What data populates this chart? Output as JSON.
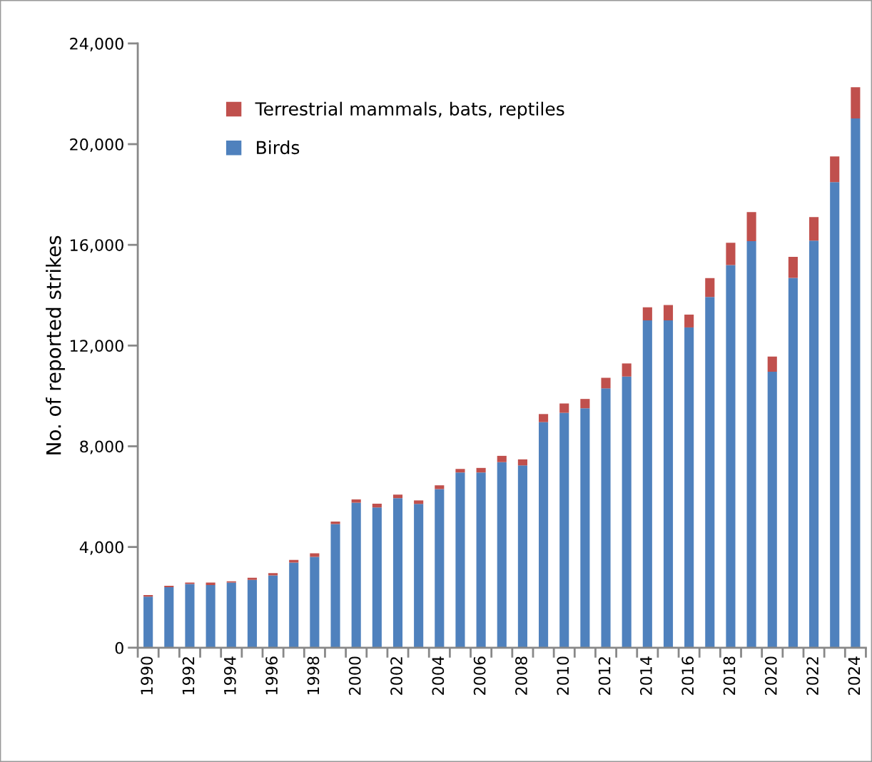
{
  "chart_data": {
    "type": "bar",
    "stacked": true,
    "ylabel": "No. of reported strikes",
    "categories": [
      "1990",
      null,
      "1992",
      null,
      "1994",
      null,
      "1996",
      null,
      "1998",
      null,
      "2000",
      null,
      "2002",
      null,
      "2004",
      null,
      "2006",
      null,
      "2008",
      null,
      "2010",
      null,
      "2012",
      null,
      "2014",
      null,
      "2016",
      null,
      "2018",
      null,
      "2020",
      null,
      "2022",
      null,
      "2024"
    ],
    "series": [
      {
        "name": "Birds",
        "color": "#4f81bd",
        "values": [
          2030,
          2400,
          2530,
          2490,
          2590,
          2690,
          2870,
          3380,
          3610,
          4910,
          5760,
          5570,
          5940,
          5710,
          6300,
          6960,
          6960,
          7370,
          7240,
          8960,
          9330,
          9510,
          10300,
          10770,
          13000,
          13000,
          12720,
          13930,
          15200,
          16150,
          10960,
          14690,
          16170,
          18490,
          21020
        ]
      },
      {
        "name": "Terrestrial mammals, bats, reptiles",
        "color": "#c0504d",
        "values": [
          60,
          60,
          60,
          100,
          50,
          90,
          90,
          110,
          140,
          100,
          130,
          150,
          140,
          140,
          150,
          140,
          180,
          250,
          240,
          320,
          370,
          370,
          420,
          520,
          520,
          610,
          510,
          750,
          880,
          1150,
          600,
          830,
          930,
          1020,
          1240
        ]
      }
    ],
    "ylim": [
      0,
      24000
    ],
    "yticks": [
      {
        "value": 0,
        "label": "0"
      },
      {
        "value": 4000,
        "label": "4,000"
      },
      {
        "value": 8000,
        "label": "8,000"
      },
      {
        "value": 12000,
        "label": "12,000"
      },
      {
        "value": 16000,
        "label": "16,000"
      },
      {
        "value": 20000,
        "label": "20,000"
      },
      {
        "value": 24000,
        "label": "24,000"
      }
    ],
    "grid": false,
    "legend": "top left"
  }
}
